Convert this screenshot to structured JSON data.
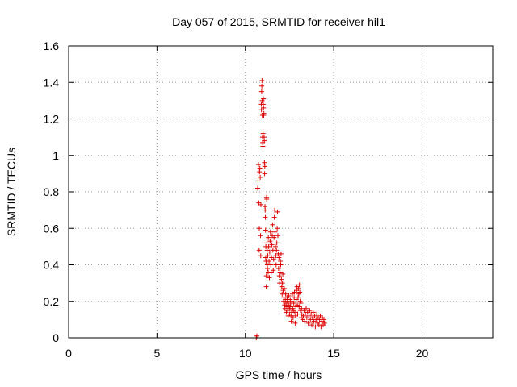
{
  "chart_data": {
    "type": "scatter",
    "title": "Day 057 of 2015, SRMTID for receiver hil1",
    "xlabel": "GPS time / hours",
    "ylabel": "SRMTID / TECUs",
    "xlim": [
      0,
      24
    ],
    "ylim": [
      0,
      1.6
    ],
    "xticks": [
      "0",
      "5",
      "10",
      "15",
      "20"
    ],
    "xtick_values": [
      0,
      5,
      10,
      15,
      20
    ],
    "yticks": [
      "0",
      "0.2",
      "0.4",
      "0.6",
      "0.8",
      "1",
      "1.2",
      "1.4",
      "1.6"
    ],
    "ytick_values": [
      0,
      0.2,
      0.4,
      0.6,
      0.8,
      1.0,
      1.2,
      1.4,
      1.6
    ],
    "grid": true,
    "marker": "+",
    "series_color": "#dd0000",
    "series": [
      {
        "name": "hil1",
        "points": [
          [
            10.62,
            0.0
          ],
          [
            10.65,
            0.01
          ],
          [
            10.7,
            0.82
          ],
          [
            10.72,
            0.86
          ],
          [
            10.74,
            0.95
          ],
          [
            10.76,
            0.74
          ],
          [
            10.78,
            0.48
          ],
          [
            10.79,
            0.6
          ],
          [
            10.8,
            0.91
          ],
          [
            10.82,
            0.93
          ],
          [
            10.84,
            0.88
          ],
          [
            10.86,
            0.56
          ],
          [
            10.87,
            0.45
          ],
          [
            10.88,
            0.73
          ],
          [
            10.9,
            1.28
          ],
          [
            10.91,
            1.25
          ],
          [
            10.92,
            1.35
          ],
          [
            10.93,
            1.38
          ],
          [
            10.94,
            1.41
          ],
          [
            10.95,
            1.3
          ],
          [
            10.96,
            1.22
          ],
          [
            10.97,
            1.1
          ],
          [
            10.98,
            1.07
          ],
          [
            10.99,
            1.05
          ],
          [
            11.0,
            1.12
          ],
          [
            11.01,
            1.28
          ],
          [
            11.02,
            1.31
          ],
          [
            11.03,
            1.26
          ],
          [
            11.04,
            1.22
          ],
          [
            11.05,
            1.23
          ],
          [
            11.06,
            1.1
          ],
          [
            11.07,
            1.08
          ],
          [
            11.08,
            0.96
          ],
          [
            11.09,
            0.9
          ],
          [
            11.1,
            0.94
          ],
          [
            11.11,
            0.72
          ],
          [
            11.12,
            0.7
          ],
          [
            11.13,
            0.66
          ],
          [
            11.14,
            0.59
          ],
          [
            11.15,
            0.44
          ],
          [
            11.16,
            0.5
          ],
          [
            11.17,
            0.42
          ],
          [
            11.18,
            0.28
          ],
          [
            11.19,
            0.34
          ],
          [
            11.2,
            0.77
          ],
          [
            11.21,
            0.76
          ],
          [
            11.22,
            0.52
          ],
          [
            11.23,
            0.48
          ],
          [
            11.24,
            0.4
          ],
          [
            11.25,
            0.38
          ],
          [
            11.27,
            0.45
          ],
          [
            11.29,
            0.36
          ],
          [
            11.3,
            0.55
          ],
          [
            11.32,
            0.5
          ],
          [
            11.34,
            0.42
          ],
          [
            11.36,
            0.33
          ],
          [
            11.38,
            0.47
          ],
          [
            11.4,
            0.53
          ],
          [
            11.42,
            0.58
          ],
          [
            11.44,
            0.4
          ],
          [
            11.46,
            0.36
          ],
          [
            11.48,
            0.44
          ],
          [
            11.5,
            0.51
          ],
          [
            11.52,
            0.56
          ],
          [
            11.54,
            0.62
          ],
          [
            11.56,
            0.48
          ],
          [
            11.58,
            0.37
          ],
          [
            11.6,
            0.43
          ],
          [
            11.62,
            0.55
          ],
          [
            11.64,
            0.66
          ],
          [
            11.66,
            0.7
          ],
          [
            11.68,
            0.58
          ],
          [
            11.7,
            0.5
          ],
          [
            11.72,
            0.45
          ],
          [
            11.74,
            0.4
          ],
          [
            11.76,
            0.48
          ],
          [
            11.78,
            0.52
          ],
          [
            11.8,
            0.6
          ],
          [
            11.82,
            0.69
          ],
          [
            11.84,
            0.56
          ],
          [
            11.86,
            0.46
          ],
          [
            11.88,
            0.38
          ],
          [
            11.9,
            0.44
          ],
          [
            11.92,
            0.34
          ],
          [
            11.94,
            0.3
          ],
          [
            11.96,
            0.36
          ],
          [
            11.98,
            0.42
          ],
          [
            12.0,
            0.4
          ],
          [
            12.02,
            0.46
          ],
          [
            12.04,
            0.32
          ],
          [
            12.06,
            0.28
          ],
          [
            12.08,
            0.24
          ],
          [
            12.1,
            0.3
          ],
          [
            12.12,
            0.35
          ],
          [
            12.14,
            0.26
          ],
          [
            12.16,
            0.2
          ],
          [
            12.18,
            0.22
          ],
          [
            12.2,
            0.27
          ],
          [
            12.22,
            0.18
          ],
          [
            12.24,
            0.16
          ],
          [
            12.26,
            0.21
          ],
          [
            12.28,
            0.24
          ],
          [
            12.3,
            0.19
          ],
          [
            12.32,
            0.14
          ],
          [
            12.34,
            0.17
          ],
          [
            12.36,
            0.22
          ],
          [
            12.38,
            0.2
          ],
          [
            12.4,
            0.15
          ],
          [
            12.42,
            0.12
          ],
          [
            12.44,
            0.18
          ],
          [
            12.46,
            0.23
          ],
          [
            12.48,
            0.17
          ],
          [
            12.5,
            0.13
          ],
          [
            12.52,
            0.16
          ],
          [
            12.54,
            0.21
          ],
          [
            12.56,
            0.19
          ],
          [
            12.58,
            0.12
          ],
          [
            12.6,
            0.09
          ],
          [
            12.62,
            0.14
          ],
          [
            12.64,
            0.2
          ],
          [
            12.66,
            0.24
          ],
          [
            12.68,
            0.16
          ],
          [
            12.7,
            0.11
          ],
          [
            12.72,
            0.15
          ],
          [
            12.74,
            0.19
          ],
          [
            12.76,
            0.22
          ],
          [
            12.78,
            0.25
          ],
          [
            12.8,
            0.14
          ],
          [
            12.82,
            0.08
          ],
          [
            12.84,
            0.12
          ],
          [
            12.86,
            0.17
          ],
          [
            12.88,
            0.21
          ],
          [
            12.9,
            0.26
          ],
          [
            12.92,
            0.28
          ],
          [
            12.94,
            0.18
          ],
          [
            12.96,
            0.13
          ],
          [
            12.98,
            0.22
          ],
          [
            13.0,
            0.27
          ],
          [
            13.02,
            0.24
          ],
          [
            13.04,
            0.17
          ],
          [
            13.06,
            0.29
          ],
          [
            13.08,
            0.25
          ],
          [
            13.1,
            0.2
          ],
          [
            13.12,
            0.15
          ],
          [
            13.14,
            0.19
          ],
          [
            13.16,
            0.11
          ],
          [
            13.18,
            0.16
          ],
          [
            13.2,
            0.13
          ],
          [
            13.24,
            0.1
          ],
          [
            13.28,
            0.12
          ],
          [
            13.32,
            0.15
          ],
          [
            13.36,
            0.09
          ],
          [
            13.4,
            0.13
          ],
          [
            13.44,
            0.16
          ],
          [
            13.48,
            0.11
          ],
          [
            13.52,
            0.14
          ],
          [
            13.56,
            0.08
          ],
          [
            13.6,
            0.12
          ],
          [
            13.64,
            0.15
          ],
          [
            13.68,
            0.1
          ],
          [
            13.72,
            0.13
          ],
          [
            13.76,
            0.07
          ],
          [
            13.8,
            0.11
          ],
          [
            13.84,
            0.14
          ],
          [
            13.88,
            0.09
          ],
          [
            13.92,
            0.12
          ],
          [
            13.96,
            0.06
          ],
          [
            14.0,
            0.1
          ],
          [
            14.04,
            0.13
          ],
          [
            14.08,
            0.08
          ],
          [
            14.12,
            0.11
          ],
          [
            14.16,
            0.07
          ],
          [
            14.2,
            0.1
          ],
          [
            14.24,
            0.12
          ],
          [
            14.28,
            0.06
          ],
          [
            14.32,
            0.09
          ],
          [
            14.36,
            0.11
          ],
          [
            14.4,
            0.07
          ],
          [
            14.44,
            0.1
          ],
          [
            14.48,
            0.08
          ]
        ]
      }
    ]
  }
}
